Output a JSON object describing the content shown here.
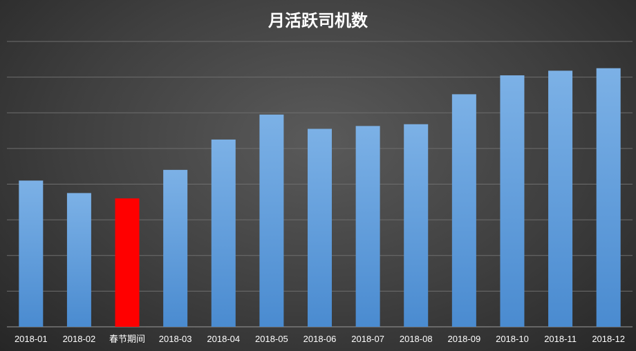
{
  "chart_data": {
    "type": "bar",
    "title": "月活跃司机数",
    "xlabel": "",
    "ylabel": "",
    "categories": [
      "2018-01",
      "2018-02",
      "春节期间",
      "2018-03",
      "2018-04",
      "2018-05",
      "2018-06",
      "2018-07",
      "2018-08",
      "2018-09",
      "2018-10",
      "2018-11",
      "2018-12"
    ],
    "values": [
      4.1,
      3.75,
      3.6,
      4.4,
      5.25,
      5.95,
      5.55,
      5.63,
      5.68,
      6.52,
      7.05,
      7.18,
      7.25
    ],
    "ylim": [
      0,
      8
    ],
    "grid": true,
    "highlight_category": "春节期间",
    "colors": {
      "bar": "#5b9bd5",
      "bar_light": "#7cb1e6",
      "highlight": "#ff0000",
      "grid": "#6e6e6e",
      "axis": "#9a9a9a",
      "text": "#ffffff"
    }
  }
}
